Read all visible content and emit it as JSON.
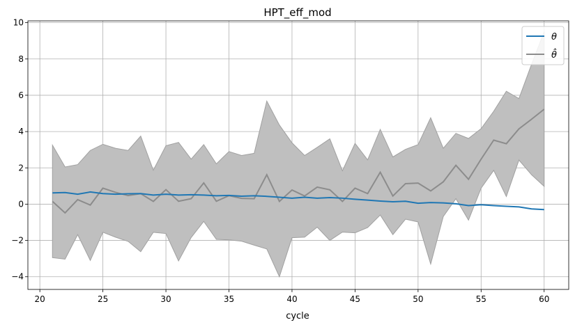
{
  "chart_data": {
    "type": "line",
    "title": "HPT_eff_mod",
    "xlabel": "cycle",
    "ylabel": "",
    "xlim": [
      19.05,
      61.95
    ],
    "ylim": [
      -4.7,
      10.1
    ],
    "xticks": [
      20,
      25,
      30,
      35,
      40,
      45,
      50,
      55,
      60
    ],
    "yticks": [
      -4,
      -2,
      0,
      2,
      4,
      6,
      8,
      10
    ],
    "grid": true,
    "legend_position": "upper right",
    "x": [
      21,
      22,
      23,
      24,
      25,
      26,
      27,
      28,
      29,
      30,
      31,
      32,
      33,
      34,
      35,
      36,
      37,
      38,
      39,
      40,
      41,
      42,
      43,
      44,
      45,
      46,
      47,
      48,
      49,
      50,
      51,
      52,
      53,
      54,
      55,
      56,
      57,
      58,
      59,
      60
    ],
    "series": [
      {
        "name": "θ",
        "color": "#1f77b4",
        "values": [
          0.62,
          0.64,
          0.55,
          0.67,
          0.58,
          0.55,
          0.57,
          0.58,
          0.5,
          0.55,
          0.5,
          0.52,
          0.5,
          0.46,
          0.48,
          0.44,
          0.46,
          0.43,
          0.38,
          0.33,
          0.38,
          0.33,
          0.36,
          0.33,
          0.27,
          0.22,
          0.17,
          0.13,
          0.16,
          0.05,
          0.09,
          0.07,
          0.02,
          -0.08,
          -0.03,
          -0.08,
          -0.12,
          -0.15,
          -0.26,
          -0.3
        ]
      },
      {
        "name": "θ̂",
        "color": "#8c8c8c",
        "values": [
          0.15,
          -0.48,
          0.25,
          -0.05,
          0.88,
          0.65,
          0.47,
          0.58,
          0.15,
          0.8,
          0.16,
          0.3,
          1.17,
          0.16,
          0.47,
          0.32,
          0.3,
          1.62,
          0.15,
          0.78,
          0.45,
          0.94,
          0.79,
          0.15,
          0.88,
          0.58,
          1.76,
          0.45,
          1.13,
          1.16,
          0.73,
          1.23,
          2.14,
          1.37,
          2.48,
          3.53,
          3.33,
          4.15,
          4.68,
          5.23
        ],
        "band_lower": [
          -2.95,
          -3.03,
          -1.68,
          -3.1,
          -1.55,
          -1.82,
          -2.05,
          -2.62,
          -1.55,
          -1.62,
          -3.13,
          -1.84,
          -0.95,
          -1.94,
          -1.97,
          -2.04,
          -2.26,
          -2.47,
          -4.0,
          -1.85,
          -1.82,
          -1.27,
          -2.0,
          -1.54,
          -1.58,
          -1.29,
          -0.6,
          -1.68,
          -0.83,
          -0.98,
          -3.3,
          -0.68,
          0.3,
          -0.88,
          0.88,
          1.86,
          0.42,
          2.43,
          1.62,
          0.98
        ],
        "band_upper": [
          3.25,
          2.05,
          2.18,
          2.96,
          3.3,
          3.08,
          2.96,
          3.75,
          1.87,
          3.22,
          3.4,
          2.48,
          3.28,
          2.22,
          2.9,
          2.68,
          2.8,
          5.68,
          4.36,
          3.38,
          2.68,
          3.13,
          3.6,
          1.84,
          3.35,
          2.44,
          4.12,
          2.6,
          3.02,
          3.28,
          4.76,
          3.08,
          3.9,
          3.62,
          4.16,
          5.12,
          6.22,
          5.82,
          7.7,
          9.5
        ]
      }
    ]
  }
}
